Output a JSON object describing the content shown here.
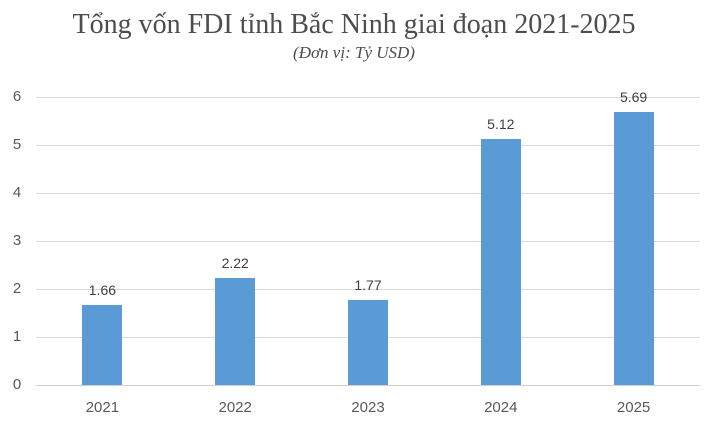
{
  "header": {
    "title": "Tổng vốn FDI tỉnh Bắc Ninh giai đoạn 2021-2025",
    "subtitle": "(Đơn vị: Tỷ USD)"
  },
  "chart_data": {
    "type": "bar",
    "title": "Tổng vốn FDI tỉnh Bắc Ninh giai đoạn 2021-2025",
    "subtitle": "(Đơn vị: Tỷ USD)",
    "categories": [
      "2021",
      "2022",
      "2023",
      "2024",
      "2025"
    ],
    "values": [
      1.66,
      2.22,
      1.77,
      5.12,
      5.69
    ],
    "data_labels": [
      "1.66",
      "2.22",
      "1.77",
      "5.12",
      "5.69"
    ],
    "xlabel": "",
    "ylabel": "",
    "ylim": [
      0,
      6
    ],
    "yticks": [
      0,
      1,
      2,
      3,
      4,
      5,
      6
    ],
    "grid": true,
    "legend": false,
    "colors": {
      "bar": "#5b9bd5",
      "gridline": "#d9d9d9",
      "axis_labels": "#595959",
      "data_labels": "#3f3f3f",
      "title": "#4d4d4d"
    }
  }
}
